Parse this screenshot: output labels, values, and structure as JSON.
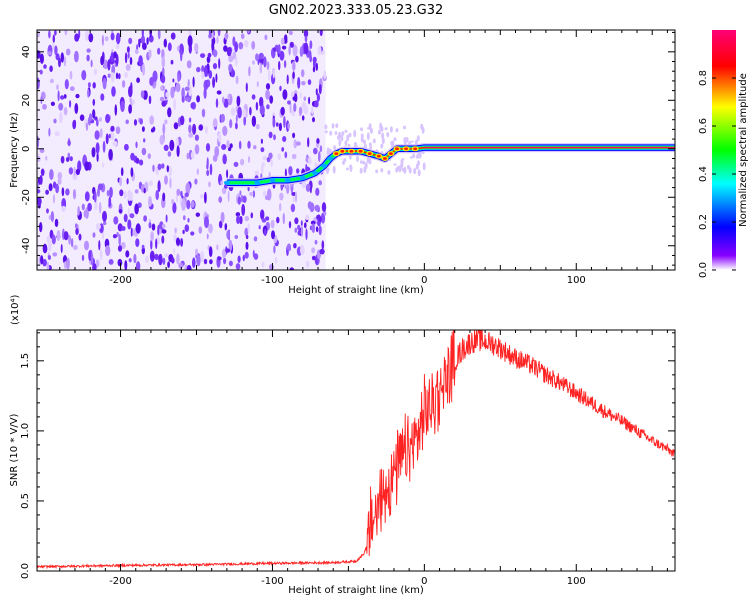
{
  "title": "GN02.2023.333.05.23.G32",
  "chart_data": [
    {
      "type": "heatmap",
      "xlabel": "Height of straight line (km)",
      "ylabel": "Frequency (Hz)",
      "xlim": [
        -255,
        165
      ],
      "ylim": [
        -50,
        49
      ],
      "xticks": [
        -200,
        -100,
        0,
        100
      ],
      "yticks": [
        -40,
        -20,
        0,
        20,
        40
      ],
      "noise_region_x": [
        -255,
        -65
      ],
      "tone_track": [
        {
          "x": -130,
          "y": -14
        },
        {
          "x": -110,
          "y": -14
        },
        {
          "x": -100,
          "y": -13
        },
        {
          "x": -90,
          "y": -13
        },
        {
          "x": -80,
          "y": -12
        },
        {
          "x": -72,
          "y": -10
        },
        {
          "x": -66,
          "y": -7
        },
        {
          "x": -62,
          "y": -4
        },
        {
          "x": -58,
          "y": -2
        },
        {
          "x": -54,
          "y": -1
        },
        {
          "x": -48,
          "y": -1
        },
        {
          "x": -42,
          "y": -1
        },
        {
          "x": -36,
          "y": -2
        },
        {
          "x": -30,
          "y": -3
        },
        {
          "x": -26,
          "y": -4
        },
        {
          "x": -22,
          "y": -2
        },
        {
          "x": -18,
          "y": 0
        },
        {
          "x": -12,
          "y": 0
        },
        {
          "x": -6,
          "y": 0
        },
        {
          "x": 0,
          "y": 0.5
        },
        {
          "x": 165,
          "y": 0.5
        }
      ],
      "colorbar": {
        "label": "Normalized spectral amplitude",
        "range": [
          0,
          1
        ],
        "ticks": [
          "0.0",
          "0.2",
          "0.4",
          "0.6",
          "0.8"
        ],
        "tick_values": [
          0.0,
          0.2,
          0.4,
          0.6,
          0.8
        ],
        "colors": [
          "#ffffff",
          "#5500ff",
          "#0000ff",
          "#00ffff",
          "#00ff00",
          "#ffff00",
          "#ff0000",
          "#ff0077"
        ]
      }
    },
    {
      "type": "line",
      "xlabel": "Height of straight line (km)",
      "ylabel": "SNR (10 * V/V)",
      "y_multiplier": "(x10⁴)",
      "xlim": [
        -255,
        165
      ],
      "ylim": [
        0,
        17200
      ],
      "xticks": [
        -200,
        -100,
        0,
        100
      ],
      "yticks": [
        "0.0",
        "0.5",
        "1.0",
        "1.5"
      ],
      "ytick_values": [
        0,
        5000,
        10000,
        15000
      ],
      "color": "#ff2222",
      "series": [
        {
          "x": [
            -255,
            -200,
            -150,
            -100,
            -60,
            -45,
            -40,
            -37,
            -35,
            -30,
            -25,
            -20,
            -15,
            -10,
            -5,
            0,
            5,
            10,
            15,
            20,
            25,
            30,
            35,
            40,
            45,
            50,
            60,
            70,
            80,
            90,
            100,
            110,
            120,
            130,
            140,
            150,
            160,
            165
          ],
          "y": [
            300,
            400,
            450,
            550,
            600,
            700,
            1200,
            2000,
            3500,
            4500,
            6000,
            7000,
            8000,
            8500,
            9500,
            11000,
            12000,
            13000,
            14000,
            15000,
            15800,
            16300,
            16500,
            16400,
            16200,
            15900,
            15200,
            14700,
            14000,
            13400,
            12700,
            12000,
            11300,
            10700,
            10000,
            9300,
            8700,
            8300
          ]
        }
      ]
    }
  ]
}
